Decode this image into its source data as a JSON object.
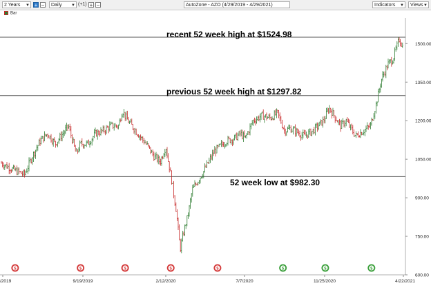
{
  "toolbar": {
    "period": "2 Years",
    "interval": "Daily",
    "offset": "(+1)",
    "title": "AutoZone - AZO (4/29/2019 - 4/29/2021)",
    "indicators": "Indicators",
    "views": "Views"
  },
  "legend": {
    "label": "Bar",
    "up_color": "#2f7d32",
    "down_color": "#c62828"
  },
  "annotations": {
    "high52": "recent 52 week high at $1524.98",
    "prev52": "previous 52 week high at $1297.82",
    "low52": "52 week low at $982.30"
  },
  "chart_data": {
    "type": "bar",
    "title": "AutoZone - AZO (4/29/2019 - 4/29/2021)",
    "series_name": "Bar",
    "x_tick_labels": [
      "/2019",
      "9/19/2019",
      "2/12/2020",
      "7/7/2020",
      "11/25/2020",
      "4/22/2021"
    ],
    "y_tick_labels": [
      "1500.00",
      "1350.00",
      "1200.00",
      "1050.00",
      "900.00",
      "750.00",
      "600.00"
    ],
    "ylim": [
      600,
      1600
    ],
    "y_axis_position": "right",
    "grid": false,
    "horizontal_lines": [
      1524.98,
      1297.82,
      982.3
    ],
    "prices": [
      {
        "date": "2019-04-29",
        "close": 1035
      },
      {
        "date": "2019-05-20",
        "close": 1010
      },
      {
        "date": "2019-06-10",
        "close": 990
      },
      {
        "date": "2019-06-24",
        "close": 1060
      },
      {
        "date": "2019-07-08",
        "close": 1120
      },
      {
        "date": "2019-07-22",
        "close": 1150
      },
      {
        "date": "2019-08-05",
        "close": 1110
      },
      {
        "date": "2019-08-19",
        "close": 1150
      },
      {
        "date": "2019-08-29",
        "close": 1180
      },
      {
        "date": "2019-09-12",
        "close": 1070
      },
      {
        "date": "2019-09-20",
        "close": 1110
      },
      {
        "date": "2019-10-03",
        "close": 1110
      },
      {
        "date": "2019-10-17",
        "close": 1150
      },
      {
        "date": "2019-10-31",
        "close": 1160
      },
      {
        "date": "2019-11-14",
        "close": 1180
      },
      {
        "date": "2019-11-28",
        "close": 1180
      },
      {
        "date": "2019-12-05",
        "close": 1240
      },
      {
        "date": "2019-12-15",
        "close": 1200
      },
      {
        "date": "2020-01-02",
        "close": 1150
      },
      {
        "date": "2020-01-17",
        "close": 1110
      },
      {
        "date": "2020-02-01",
        "close": 1060
      },
      {
        "date": "2020-02-12",
        "close": 1040
      },
      {
        "date": "2020-02-22",
        "close": 1100
      },
      {
        "date": "2020-03-05",
        "close": 950
      },
      {
        "date": "2020-03-12",
        "close": 850
      },
      {
        "date": "2020-03-19",
        "close": 700
      },
      {
        "date": "2020-03-25",
        "close": 760
      },
      {
        "date": "2020-04-03",
        "close": 840
      },
      {
        "date": "2020-04-10",
        "close": 930
      },
      {
        "date": "2020-04-30",
        "close": 1000
      },
      {
        "date": "2020-05-20",
        "close": 1080
      },
      {
        "date": "2020-06-10",
        "close": 1120
      },
      {
        "date": "2020-06-25",
        "close": 1130
      },
      {
        "date": "2020-07-07",
        "close": 1150
      },
      {
        "date": "2020-07-15",
        "close": 1130
      },
      {
        "date": "2020-07-30",
        "close": 1200
      },
      {
        "date": "2020-08-15",
        "close": 1220
      },
      {
        "date": "2020-08-30",
        "close": 1210
      },
      {
        "date": "2020-09-12",
        "close": 1230
      },
      {
        "date": "2020-09-25",
        "close": 1160
      },
      {
        "date": "2020-10-05",
        "close": 1170
      },
      {
        "date": "2020-10-15",
        "close": 1160
      },
      {
        "date": "2020-10-30",
        "close": 1140
      },
      {
        "date": "2020-11-15",
        "close": 1160
      },
      {
        "date": "2020-11-25",
        "close": 1180
      },
      {
        "date": "2020-12-05",
        "close": 1200
      },
      {
        "date": "2020-12-15",
        "close": 1250
      },
      {
        "date": "2021-01-05",
        "close": 1180
      },
      {
        "date": "2021-01-15",
        "close": 1200
      },
      {
        "date": "2021-02-01",
        "close": 1140
      },
      {
        "date": "2021-02-15",
        "close": 1160
      },
      {
        "date": "2021-02-28",
        "close": 1180
      },
      {
        "date": "2021-03-10",
        "close": 1260
      },
      {
        "date": "2021-03-20",
        "close": 1360
      },
      {
        "date": "2021-04-01",
        "close": 1420
      },
      {
        "date": "2021-04-10",
        "close": 1440
      },
      {
        "date": "2021-04-22",
        "close": 1520
      },
      {
        "date": "2021-04-29",
        "close": 1480
      }
    ],
    "event_markers": [
      {
        "date": "2019-05-24",
        "kind": "down"
      },
      {
        "date": "2019-09-20",
        "kind": "down"
      },
      {
        "date": "2019-12-10",
        "kind": "down"
      },
      {
        "date": "2020-03-02",
        "kind": "down"
      },
      {
        "date": "2020-05-26",
        "kind": "down"
      },
      {
        "date": "2020-09-22",
        "kind": "up"
      },
      {
        "date": "2020-12-08",
        "kind": "up"
      },
      {
        "date": "2021-03-02",
        "kind": "up"
      }
    ]
  }
}
